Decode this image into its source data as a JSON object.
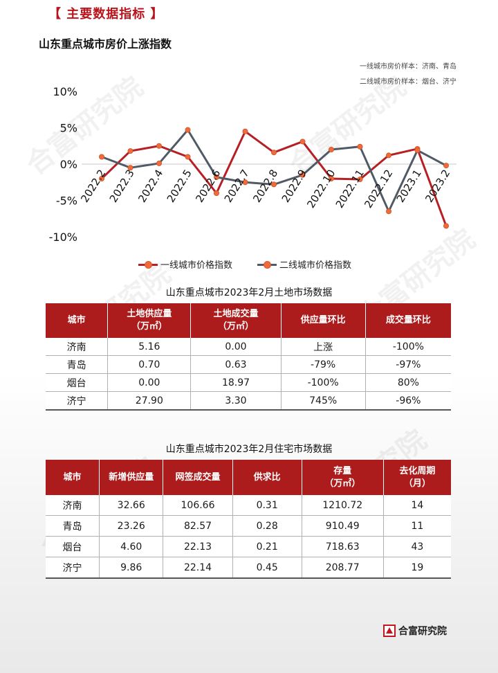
{
  "section_header": "【 主要数据指标 】",
  "chart_title": "山东重点城市房价上涨指数",
  "notes": [
    "一线城市房价样本：济南、青岛",
    "二线城市房价样本：烟台、济宁"
  ],
  "chart_data": {
    "type": "line",
    "categories": [
      "2022.2",
      "2022.3",
      "2022.4",
      "2022.5",
      "2022.6",
      "2022.7",
      "2022.8",
      "2022.9",
      "2022.10",
      "2022.11",
      "2022.12",
      "2023.1",
      "2023.2"
    ],
    "y_ticks": [
      "10%",
      "5%",
      "0%",
      "-5%",
      "-10%"
    ],
    "ylim": [
      -10,
      10
    ],
    "series": [
      {
        "name": "一线城市价格指数",
        "color": "#b61f24",
        "values": [
          -2,
          1.8,
          2.5,
          1.0,
          -4,
          4.5,
          1.6,
          3.1,
          -2,
          -2.1,
          1.2,
          2.1,
          -8.5
        ]
      },
      {
        "name": "二线城市价格指数",
        "color": "#505a66",
        "values": [
          1.0,
          -0.5,
          0.1,
          4.7,
          -1.8,
          -2.5,
          -2.8,
          -1.5,
          2.0,
          2.4,
          -6.5,
          1.9,
          -0.2
        ]
      }
    ],
    "legend_position": "bottom"
  },
  "land_table": {
    "title": "山东重点城市2023年2月土地市场数据",
    "headers": [
      "城市",
      "土地供应量\n（万㎡）",
      "土地成交量\n（万㎡）",
      "供应量环比",
      "成交量环比"
    ],
    "rows": [
      [
        "济南",
        "5.16",
        "0.00",
        "上涨",
        "-100%"
      ],
      [
        "青岛",
        "0.70",
        "0.63",
        "-79%",
        "-97%"
      ],
      [
        "烟台",
        "0.00",
        "18.97",
        "-100%",
        "80%"
      ],
      [
        "济宁",
        "27.90",
        "3.30",
        "745%",
        "-96%"
      ]
    ]
  },
  "housing_table": {
    "title": "山东重点城市2023年2月住宅市场数据",
    "headers": [
      "城市",
      "新增供应量",
      "网签成交量",
      "供求比",
      "存量\n（万㎡）",
      "去化周期\n（月）"
    ],
    "rows": [
      [
        "济南",
        "32.66",
        "106.66",
        "0.31",
        "1210.72",
        "14"
      ],
      [
        "青岛",
        "23.26",
        "82.57",
        "0.28",
        "910.49",
        "11"
      ],
      [
        "烟台",
        "4.60",
        "22.13",
        "0.21",
        "718.63",
        "43"
      ],
      [
        "济宁",
        "9.86",
        "22.14",
        "0.45",
        "208.77",
        "19"
      ]
    ]
  },
  "watermark": "合富研究院",
  "logo_text": "合富研究院",
  "colors": {
    "accent": "#ad1c1c",
    "line1": "#b61f24",
    "line2": "#505a66",
    "marker": "#f06a3a"
  }
}
